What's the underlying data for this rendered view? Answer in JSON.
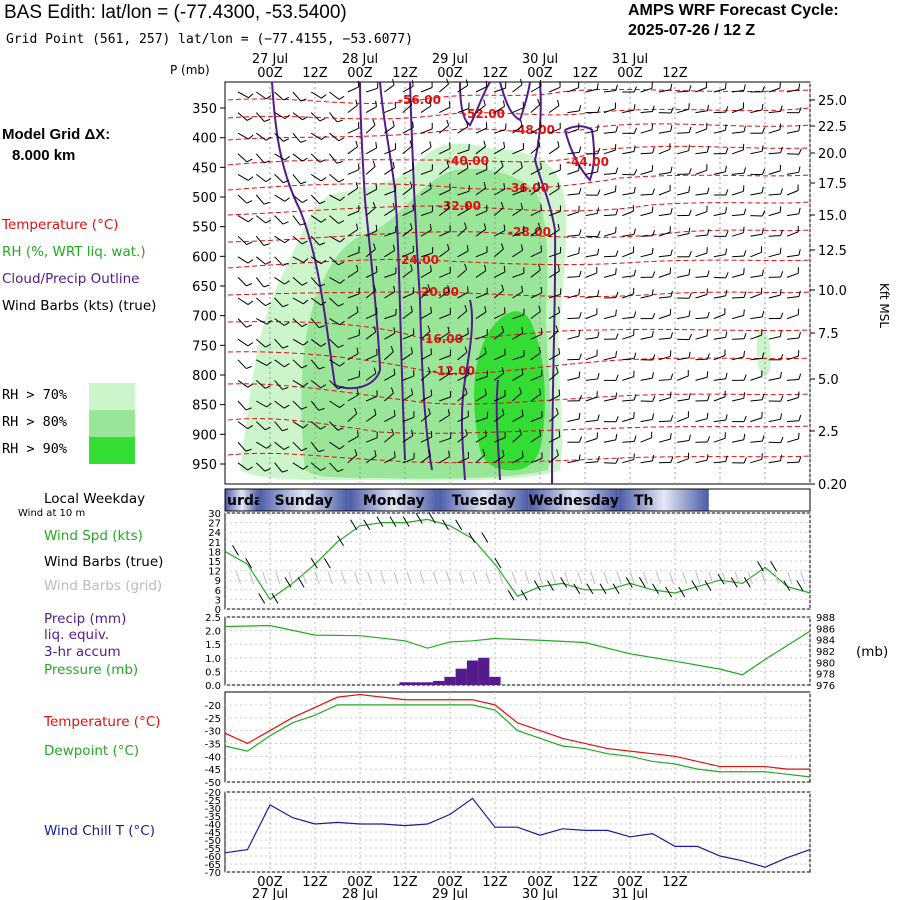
{
  "header": {
    "title": "BAS Edith:  lat/lon = (-77.4300, -53.5400)",
    "grid_point": "Grid Point (561, 257) lat/lon = (−77.4155, −53.6077)",
    "cycle_label": "AMPS WRF Forecast Cycle:",
    "cycle_value": "2025-07-26 / 12  Z"
  },
  "time_axis": {
    "hour_labels": [
      "00Z",
      "12Z",
      "00Z",
      "12Z",
      "00Z",
      "12Z",
      "00Z",
      "12Z",
      "00Z",
      "12Z"
    ],
    "date_labels": [
      "27 Jul",
      "28 Jul",
      "29 Jul",
      "30 Jul",
      "31 Jul"
    ]
  },
  "cross_section": {
    "p_axis_label": "P (mb)",
    "grid_label_line1": "Model Grid ΔX:",
    "grid_label_line2": "8.000 km",
    "legend_temperature": "Temperature (°C)",
    "legend_rh": "RH (%, WRT liq. wat.)",
    "legend_cloud": "Cloud/Precip Outline",
    "legend_wind": "Wind Barbs (kts) (true)",
    "rh_70": "RH > 70%",
    "rh_80": "RH > 80%",
    "rh_90": "RH > 90%",
    "right_axis_label": "Kft MSL",
    "colors": {
      "rh70": "#ccf5cc",
      "rh80": "#99e699",
      "rh90": "#33dd33",
      "temp": "#dd1111",
      "cloud": "#551a8b"
    }
  },
  "weekday_bar": {
    "label": "Local Weekday",
    "wind_note": "Wind at 10 m",
    "days": [
      "urday",
      "Sunday",
      "Monday",
      "Tuesday",
      "Wednesday",
      "Th"
    ]
  },
  "panels": {
    "wind": {
      "l1": "Wind Spd (kts)",
      "l2": "Wind Barbs (true)",
      "l3": "Wind Barbs (grid)"
    },
    "precip": {
      "l1": "Precip (mm)",
      "l2": "liq. equiv.",
      "l3": "3-hr accum",
      "l4": "Pressure (mb)",
      "right_unit": "(mb)"
    },
    "temp": {
      "l1": "Temperature (°C)",
      "l2": "Dewpoint (°C)"
    },
    "chill": {
      "l1": "Wind Chill T (°C)"
    }
  },
  "chart_data": [
    {
      "type": "heatmap",
      "title": "BAS Edith:  lat/lon = (-77.4300, -53.5400)",
      "ylabel": "P (mb)",
      "y_ticks": [
        350,
        400,
        450,
        500,
        550,
        600,
        650,
        700,
        750,
        800,
        850,
        900,
        950
      ],
      "y_right_label": "Kft MSL",
      "y_right_ticks": [
        "25.0",
        "22.5",
        "20.0",
        "17.5",
        "15.0",
        "12.5",
        "10.0",
        "7.5",
        "5.0",
        "2.5",
        "0.20"
      ],
      "temperature_contour_labels": [
        "-56.00",
        "-52.00",
        "-48.00",
        "-44.00",
        "-40.00",
        "-36.00",
        "-32.00",
        "-28.00",
        "-24.00",
        "-20.00",
        "-16.00",
        "-12.00"
      ],
      "legend": [
        "Temperature (°C)",
        "RH (%, WRT liq. wat.)",
        "Cloud/Precip Outline",
        "Wind Barbs (kts) (true)"
      ]
    },
    {
      "type": "line",
      "name_label": "Wind Spd (kts)",
      "x_hours": [
        -12,
        -6,
        0,
        6,
        12,
        18,
        24,
        30,
        36,
        42,
        48,
        54,
        60,
        66,
        72,
        78,
        84,
        90,
        96,
        102,
        108,
        114,
        120,
        126,
        132,
        138,
        144
      ],
      "series": [
        {
          "name": "Wind Spd (kts)",
          "values": [
            18,
            14,
            3,
            8,
            14,
            21,
            26,
            27,
            27,
            28,
            26,
            22,
            14,
            4,
            7,
            8,
            6,
            6,
            8,
            6,
            5,
            7,
            9,
            8,
            13,
            7,
            5
          ]
        }
      ],
      "y_ticks": [
        0,
        3,
        6,
        9,
        12,
        15,
        18,
        21,
        24,
        27,
        30
      ],
      "ylim": [
        0,
        30
      ]
    },
    {
      "type": "bar",
      "name_label": "Precip (mm)",
      "x_hours": [
        36,
        39,
        42,
        45,
        48,
        51,
        54,
        57,
        60
      ],
      "values": [
        0.1,
        0.1,
        0.1,
        0.15,
        0.3,
        0.6,
        0.9,
        1.0,
        0.3
      ],
      "ylim": [
        0,
        2.5
      ],
      "y_ticks": [
        "0.0",
        "0.5",
        "1.0",
        "1.5",
        "2.0",
        "2.5"
      ],
      "pressure_series": {
        "name": "Pressure (mb)",
        "x_hours": [
          -12,
          0,
          12,
          24,
          36,
          42,
          48,
          54,
          60,
          72,
          84,
          96,
          108,
          120,
          126,
          132,
          144
        ],
        "values": [
          986.3,
          986.5,
          984.8,
          984.7,
          983.8,
          982.5,
          983.6,
          983.8,
          984.2,
          983.9,
          983.5,
          981.5,
          980.2,
          978.8,
          977.8,
          980.5,
          985.5
        ]
      },
      "y_right_ticks": [
        976,
        978,
        980,
        982,
        984,
        986,
        988
      ]
    },
    {
      "type": "line",
      "x_hours": [
        -12,
        -6,
        0,
        6,
        12,
        18,
        24,
        30,
        36,
        42,
        48,
        54,
        60,
        66,
        72,
        78,
        84,
        90,
        96,
        102,
        108,
        114,
        120,
        126,
        132,
        138,
        144
      ],
      "series": [
        {
          "name": "Temperature (°C)",
          "values": [
            -31,
            -35,
            -30,
            -25,
            -21,
            -17,
            -16,
            -17,
            -18,
            -18,
            -18,
            -18,
            -20,
            -27,
            -30,
            -33,
            -35,
            -37,
            -38,
            -39,
            -40,
            -42,
            -44,
            -44,
            -44,
            -45,
            -45
          ]
        },
        {
          "name": "Dewpoint (°C)",
          "values": [
            -36,
            -38,
            -32,
            -27,
            -24,
            -20,
            -20,
            -20,
            -20,
            -20,
            -20,
            -20,
            -22,
            -30,
            -33,
            -36,
            -37,
            -39,
            -40,
            -42,
            -43,
            -45,
            -46,
            -46,
            -46,
            -47,
            -48
          ]
        }
      ],
      "y_ticks": [
        -50,
        -45,
        -40,
        -35,
        -30,
        -25,
        -20
      ],
      "ylim": [
        -50,
        -15
      ]
    },
    {
      "type": "line",
      "x_hours": [
        -12,
        -6,
        0,
        6,
        12,
        18,
        24,
        30,
        36,
        42,
        48,
        54,
        60,
        66,
        72,
        78,
        84,
        90,
        96,
        102,
        108,
        114,
        120,
        126,
        132,
        138,
        144
      ],
      "series": [
        {
          "name": "Wind Chill T (°C)",
          "values": [
            -58,
            -56,
            -28,
            -36,
            -40,
            -39,
            -40,
            -40,
            -41,
            -40,
            -34,
            -24,
            -42,
            -42,
            -47,
            -43,
            -44,
            -44,
            -48,
            -46,
            -54,
            -54,
            -60,
            -63,
            -67,
            -61,
            -56
          ]
        }
      ],
      "y_ticks": [
        -70,
        -65,
        -60,
        -55,
        -50,
        -45,
        -40,
        -35,
        -30,
        -25,
        -20
      ],
      "ylim": [
        -70,
        -20
      ]
    }
  ]
}
